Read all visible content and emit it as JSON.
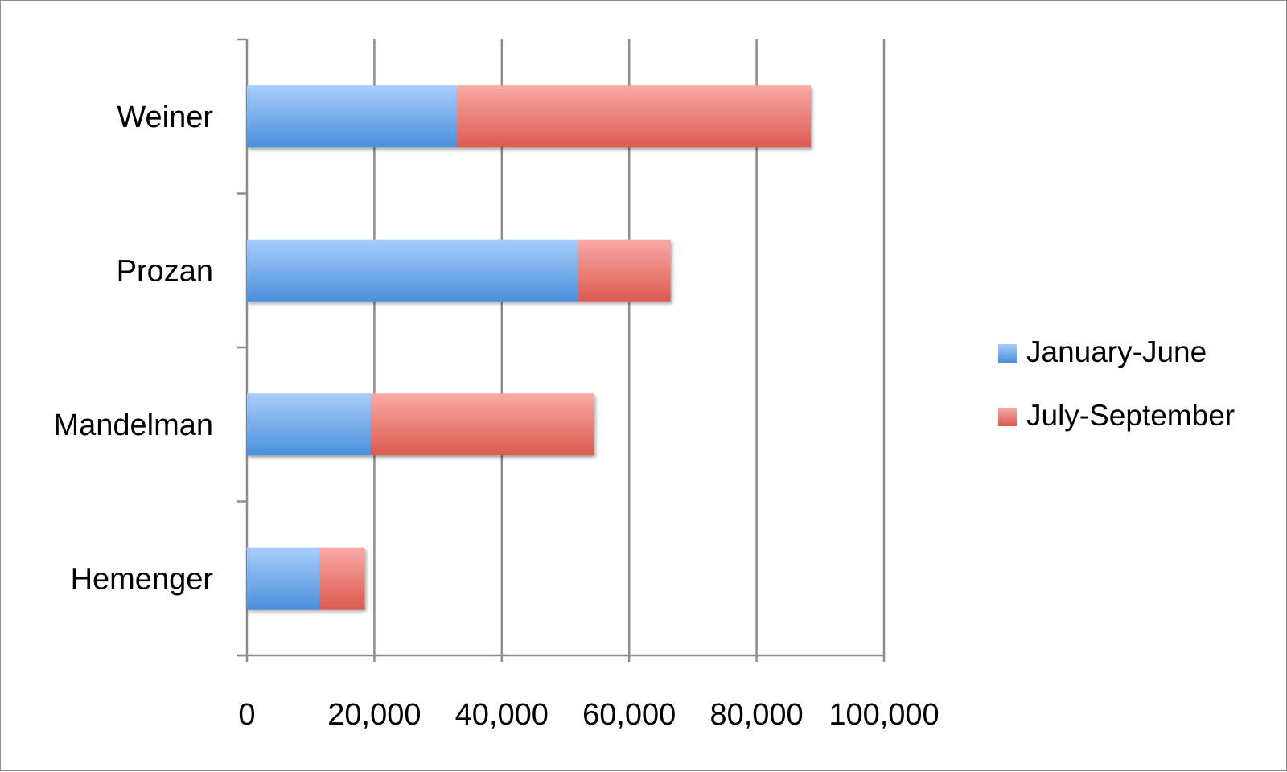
{
  "chart_data": {
    "type": "bar",
    "orientation": "horizontal",
    "stacked": true,
    "categories": [
      "Weiner",
      "Prozan",
      "Mandelman",
      "Hemenger"
    ],
    "series": [
      {
        "name": "January-June",
        "values": [
          33000,
          52000,
          19500,
          11500
        ]
      },
      {
        "name": "July-September",
        "values": [
          55500,
          14500,
          35000,
          7000
        ]
      }
    ],
    "xlim": [
      0,
      100000
    ],
    "x_ticks": [
      0,
      20000,
      40000,
      60000,
      80000,
      100000
    ],
    "x_tick_labels": [
      "0",
      "20,000",
      "40,000",
      "60,000",
      "80,000",
      "100,000"
    ],
    "grid": "vertical",
    "legend_position": "right",
    "title": "",
    "xlabel": "",
    "ylabel": "",
    "colors": {
      "January-June": {
        "light": "#a9cdfb",
        "dark": "#4a8fdc"
      },
      "July-September": {
        "light": "#f9a9a5",
        "dark": "#dc5a50"
      },
      "gridline": "#8c8c8c",
      "axis": "#8c8c8c"
    }
  }
}
